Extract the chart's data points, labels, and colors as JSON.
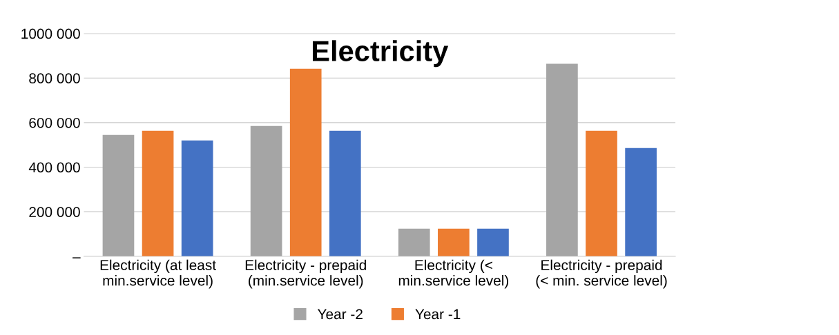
{
  "chart_data": {
    "type": "bar",
    "title": "Electricity",
    "categories": [
      "Electricity (at least\nmin.service level)",
      "Electricity - prepaid\n(min.service level)",
      "Electricity (<\nmin.service level)",
      "Electricity - prepaid\n(< min. service level)"
    ],
    "series": [
      {
        "name": "Year -2",
        "color": "#a5a5a5",
        "values": [
          545000,
          585000,
          124000,
          864000
        ]
      },
      {
        "name": "Year -1",
        "color": "#ed7d31",
        "values": [
          563000,
          842000,
          124000,
          563000
        ]
      },
      {
        "color": "#4472c4",
        "values": [
          520000,
          563000,
          124000,
          486000
        ]
      }
    ],
    "ylim": [
      0,
      1000000
    ],
    "yticks": [
      {
        "value": 0,
        "label": "–"
      },
      {
        "value": 200000,
        "label": "200 000"
      },
      {
        "value": 400000,
        "label": "400 000"
      },
      {
        "value": 600000,
        "label": "600 000"
      },
      {
        "value": 800000,
        "label": "800 000"
      },
      {
        "value": 1000000,
        "label": "1000 000"
      }
    ],
    "grid": "y",
    "legend": "bottom"
  }
}
